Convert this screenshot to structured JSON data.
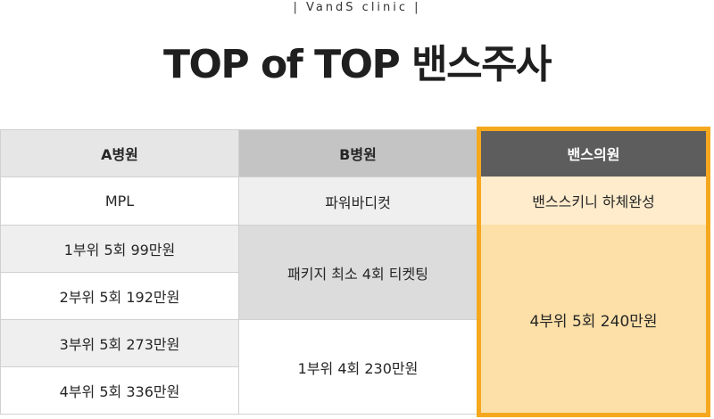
{
  "header": {
    "subtitle": "| VandS clinic |",
    "title": "TOP of TOP 밴스주사"
  },
  "table": {
    "columns": [
      "A병원",
      "B병원",
      "밴스의원"
    ],
    "products": [
      "MPL",
      "파워바디컷",
      "밴스스키니 하체완성"
    ],
    "a_prices": [
      "1부위 5회 99만원",
      "2부위 5회 192만원",
      "3부위 5회 273만원",
      "4부위 5회 336만원"
    ],
    "b_offers": [
      "패키지 최소 4회 티켓팅",
      "1부위 4회 230만원"
    ],
    "vands_offer": "4부위 5회 240만원"
  },
  "colors": {
    "header_a": "#e6e6e6",
    "header_b": "#c4c4c4",
    "header_vands": "#5d5d5d",
    "highlight_border": "#f5a81e",
    "vands_product_bg": "#ffeccc",
    "vands_offer_bg": "#fde0a8"
  }
}
